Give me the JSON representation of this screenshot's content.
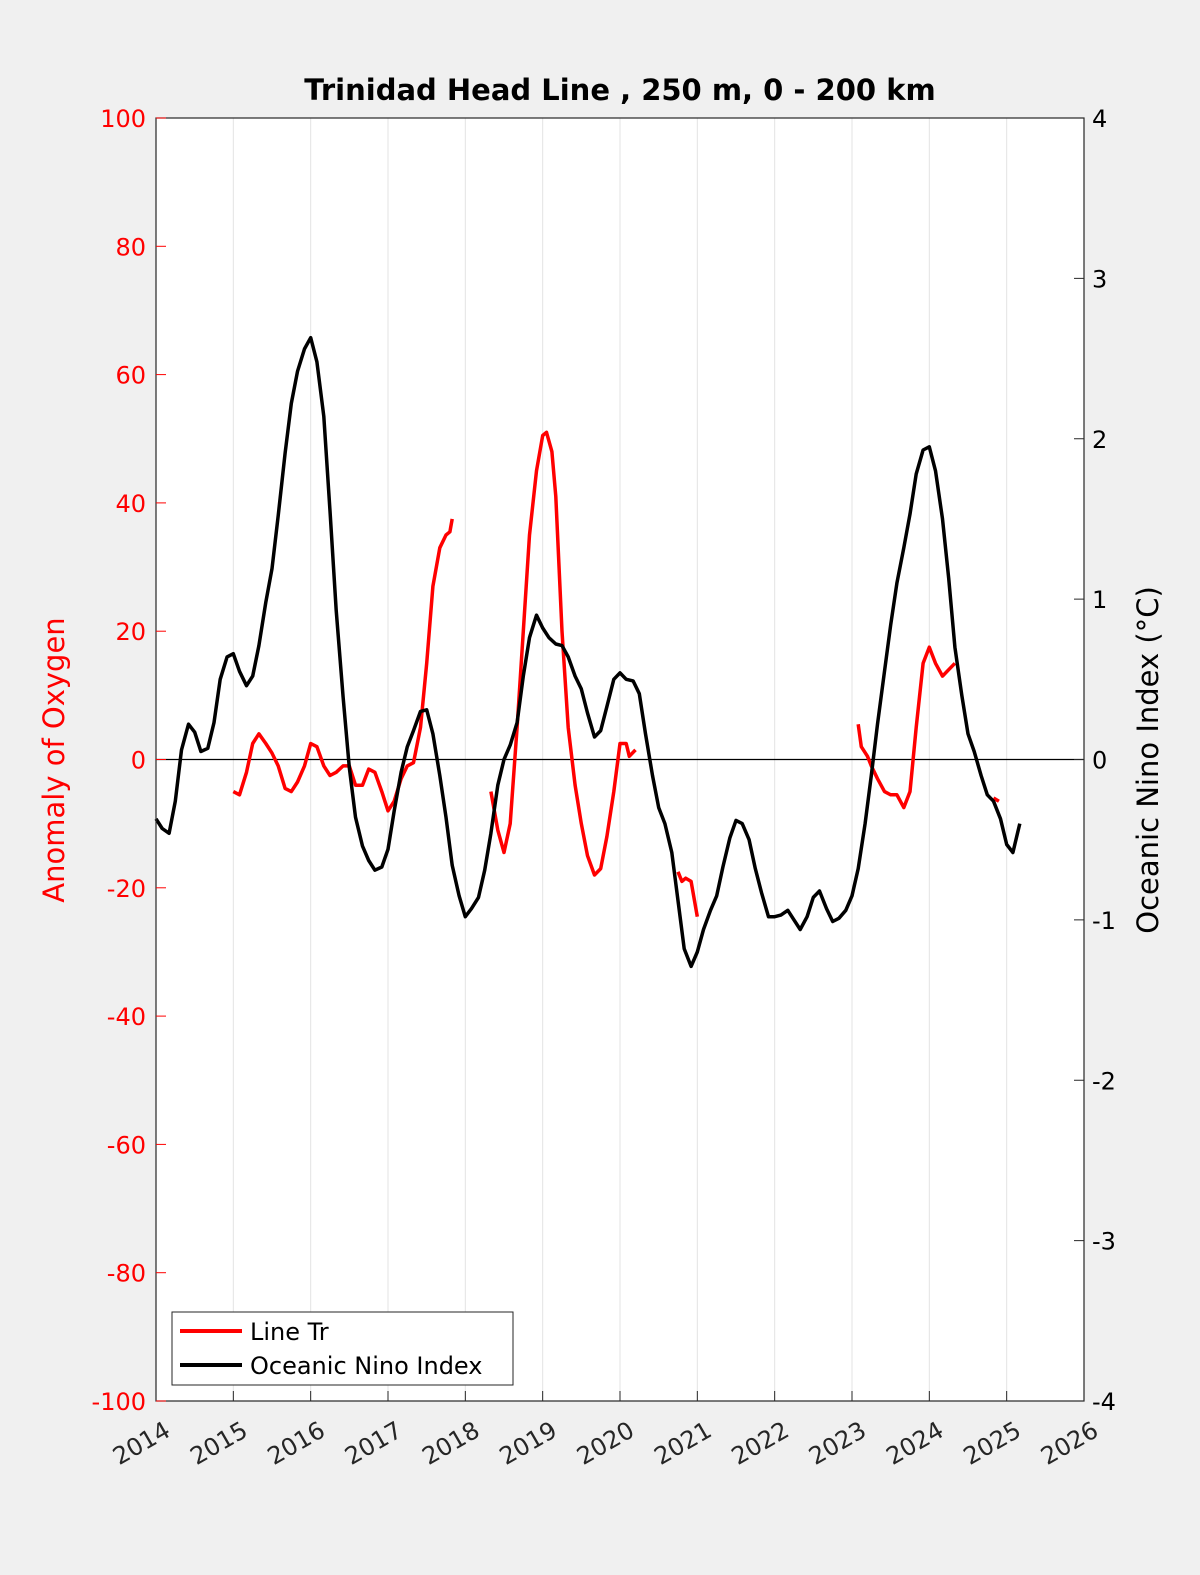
{
  "chart_data": {
    "type": "line",
    "title": "Trinidad Head Line , 250 m, 0 - 200 km",
    "ylabel_left": "Anomaly of Oxygen",
    "ylabel_right": "Oceanic Nino Index (°C)",
    "xlim": [
      2014,
      2026
    ],
    "ylim_left": [
      -100,
      100
    ],
    "ylim_right": [
      -4,
      4
    ],
    "x_ticks": [
      "2014",
      "2015",
      "2016",
      "2017",
      "2018",
      "2019",
      "2020",
      "2021",
      "2022",
      "2023",
      "2024",
      "2025",
      "2026"
    ],
    "y_left_ticks": [
      "100",
      "80",
      "60",
      "40",
      "20",
      "0",
      "-20",
      "-40",
      "-60",
      "-80",
      "-100"
    ],
    "y_right_ticks": [
      "4",
      "3",
      "2",
      "1",
      "0",
      "-1",
      "-2",
      "-3",
      "-4"
    ],
    "grid": "vertical",
    "zero_line": true,
    "legend_position": "bottom-left",
    "series": [
      {
        "name": "Line Tr",
        "axis": "left",
        "color": "#ff0000",
        "segments": [
          [
            [
              2015.0,
              -5
            ],
            [
              2015.08,
              -5.5
            ],
            [
              2015.17,
              -2
            ],
            [
              2015.25,
              2.5
            ],
            [
              2015.33,
              4
            ],
            [
              2015.42,
              2.5
            ],
            [
              2015.5,
              1
            ],
            [
              2015.58,
              -1
            ],
            [
              2015.67,
              -4.5
            ],
            [
              2015.75,
              -5
            ],
            [
              2015.83,
              -3.5
            ],
            [
              2015.92,
              -1
            ],
            [
              2016.0,
              2.5
            ],
            [
              2016.08,
              2
            ],
            [
              2016.17,
              -1
            ],
            [
              2016.25,
              -2.5
            ],
            [
              2016.33,
              -2
            ],
            [
              2016.42,
              -1
            ],
            [
              2016.5,
              -1
            ],
            [
              2016.58,
              -4
            ],
            [
              2016.67,
              -4
            ],
            [
              2016.75,
              -1.5
            ],
            [
              2016.83,
              -2
            ],
            [
              2016.92,
              -5
            ],
            [
              2017.0,
              -8
            ],
            [
              2017.08,
              -6.5
            ],
            [
              2017.17,
              -3
            ],
            [
              2017.25,
              -1
            ],
            [
              2017.33,
              -0.5
            ],
            [
              2017.42,
              5
            ],
            [
              2017.5,
              15
            ],
            [
              2017.58,
              27
            ],
            [
              2017.67,
              33
            ],
            [
              2017.75,
              35
            ],
            [
              2017.8,
              35.5
            ],
            [
              2017.83,
              37.5
            ]
          ],
          [
            [
              2018.33,
              -5
            ],
            [
              2018.42,
              -11
            ],
            [
              2018.5,
              -14.5
            ],
            [
              2018.58,
              -10
            ],
            [
              2018.67,
              5
            ],
            [
              2018.75,
              20
            ],
            [
              2018.83,
              35
            ],
            [
              2018.92,
              45
            ],
            [
              2019.0,
              50.5
            ],
            [
              2019.05,
              51
            ],
            [
              2019.12,
              48
            ],
            [
              2019.17,
              41
            ],
            [
              2019.25,
              20
            ],
            [
              2019.33,
              5
            ],
            [
              2019.42,
              -4
            ],
            [
              2019.5,
              -10
            ],
            [
              2019.58,
              -15
            ],
            [
              2019.67,
              -18
            ],
            [
              2019.75,
              -17
            ],
            [
              2019.83,
              -12
            ],
            [
              2019.92,
              -5
            ],
            [
              2020.0,
              2.5
            ],
            [
              2020.08,
              2.5
            ],
            [
              2020.12,
              0.5
            ],
            [
              2020.2,
              1.5
            ]
          ],
          [
            [
              2020.75,
              -17.5
            ],
            [
              2020.8,
              -19
            ],
            [
              2020.85,
              -18.5
            ],
            [
              2020.92,
              -19
            ],
            [
              2021.0,
              -24.5
            ]
          ],
          [
            [
              2023.08,
              5.5
            ],
            [
              2023.12,
              2
            ],
            [
              2023.2,
              0.5
            ],
            [
              2023.25,
              -1
            ],
            [
              2023.33,
              -3
            ],
            [
              2023.42,
              -5
            ],
            [
              2023.5,
              -5.5
            ],
            [
              2023.58,
              -5.5
            ],
            [
              2023.67,
              -7.5
            ],
            [
              2023.75,
              -5
            ],
            [
              2023.83,
              5
            ],
            [
              2023.92,
              15
            ],
            [
              2024.0,
              17.5
            ],
            [
              2024.08,
              15
            ],
            [
              2024.17,
              13
            ],
            [
              2024.25,
              14
            ],
            [
              2024.33,
              15
            ]
          ],
          [
            [
              2024.83,
              -6
            ],
            [
              2024.9,
              -6.5
            ]
          ]
        ]
      },
      {
        "name": "Oceanic Nino Index",
        "axis": "right",
        "color": "#000000",
        "segments": [
          [
            [
              2014.0,
              -0.37
            ],
            [
              2014.08,
              -0.43
            ],
            [
              2014.17,
              -0.46
            ],
            [
              2014.25,
              -0.26
            ],
            [
              2014.33,
              0.06
            ],
            [
              2014.42,
              0.22
            ],
            [
              2014.5,
              0.17
            ],
            [
              2014.58,
              0.05
            ],
            [
              2014.67,
              0.07
            ],
            [
              2014.75,
              0.23
            ],
            [
              2014.83,
              0.5
            ],
            [
              2014.92,
              0.64
            ],
            [
              2015.0,
              0.66
            ],
            [
              2015.08,
              0.55
            ],
            [
              2015.17,
              0.46
            ],
            [
              2015.25,
              0.52
            ],
            [
              2015.33,
              0.71
            ],
            [
              2015.42,
              0.98
            ],
            [
              2015.5,
              1.19
            ],
            [
              2015.58,
              1.52
            ],
            [
              2015.67,
              1.91
            ],
            [
              2015.75,
              2.22
            ],
            [
              2015.83,
              2.42
            ],
            [
              2015.92,
              2.56
            ],
            [
              2016.0,
              2.63
            ],
            [
              2016.08,
              2.48
            ],
            [
              2016.17,
              2.14
            ],
            [
              2016.25,
              1.55
            ],
            [
              2016.33,
              0.93
            ],
            [
              2016.42,
              0.39
            ],
            [
              2016.5,
              -0.05
            ],
            [
              2016.58,
              -0.36
            ],
            [
              2016.67,
              -0.54
            ],
            [
              2016.75,
              -0.63
            ],
            [
              2016.83,
              -0.69
            ],
            [
              2016.92,
              -0.67
            ],
            [
              2017.0,
              -0.56
            ],
            [
              2017.08,
              -0.32
            ],
            [
              2017.17,
              -0.08
            ],
            [
              2017.25,
              0.08
            ],
            [
              2017.33,
              0.18
            ],
            [
              2017.42,
              0.3
            ],
            [
              2017.5,
              0.31
            ],
            [
              2017.58,
              0.16
            ],
            [
              2017.67,
              -0.1
            ],
            [
              2017.75,
              -0.36
            ],
            [
              2017.83,
              -0.66
            ],
            [
              2017.92,
              -0.85
            ],
            [
              2018.0,
              -0.98
            ],
            [
              2018.08,
              -0.93
            ],
            [
              2018.17,
              -0.86
            ],
            [
              2018.25,
              -0.69
            ],
            [
              2018.33,
              -0.46
            ],
            [
              2018.42,
              -0.16
            ],
            [
              2018.5,
              0.0
            ],
            [
              2018.58,
              0.09
            ],
            [
              2018.67,
              0.23
            ],
            [
              2018.75,
              0.52
            ],
            [
              2018.83,
              0.76
            ],
            [
              2018.92,
              0.9
            ],
            [
              2019.0,
              0.82
            ],
            [
              2019.08,
              0.76
            ],
            [
              2019.17,
              0.72
            ],
            [
              2019.25,
              0.71
            ],
            [
              2019.33,
              0.64
            ],
            [
              2019.42,
              0.52
            ],
            [
              2019.5,
              0.44
            ],
            [
              2019.58,
              0.29
            ],
            [
              2019.67,
              0.14
            ],
            [
              2019.75,
              0.18
            ],
            [
              2019.83,
              0.33
            ],
            [
              2019.92,
              0.5
            ],
            [
              2020.0,
              0.54
            ],
            [
              2020.08,
              0.5
            ],
            [
              2020.17,
              0.49
            ],
            [
              2020.25,
              0.41
            ],
            [
              2020.33,
              0.16
            ],
            [
              2020.42,
              -0.1
            ],
            [
              2020.5,
              -0.3
            ],
            [
              2020.58,
              -0.4
            ],
            [
              2020.67,
              -0.58
            ],
            [
              2020.75,
              -0.88
            ],
            [
              2020.83,
              -1.18
            ],
            [
              2020.92,
              -1.29
            ],
            [
              2021.0,
              -1.2
            ],
            [
              2021.08,
              -1.06
            ],
            [
              2021.17,
              -0.94
            ],
            [
              2021.25,
              -0.85
            ],
            [
              2021.33,
              -0.67
            ],
            [
              2021.42,
              -0.49
            ],
            [
              2021.5,
              -0.38
            ],
            [
              2021.58,
              -0.4
            ],
            [
              2021.67,
              -0.5
            ],
            [
              2021.75,
              -0.68
            ],
            [
              2021.83,
              -0.83
            ],
            [
              2021.92,
              -0.98
            ],
            [
              2022.0,
              -0.98
            ],
            [
              2022.08,
              -0.97
            ],
            [
              2022.17,
              -0.94
            ],
            [
              2022.25,
              -1.0
            ],
            [
              2022.33,
              -1.06
            ],
            [
              2022.42,
              -0.98
            ],
            [
              2022.5,
              -0.86
            ],
            [
              2022.58,
              -0.82
            ],
            [
              2022.67,
              -0.93
            ],
            [
              2022.75,
              -1.01
            ],
            [
              2022.83,
              -0.99
            ],
            [
              2022.92,
              -0.94
            ],
            [
              2023.0,
              -0.85
            ],
            [
              2023.08,
              -0.68
            ],
            [
              2023.17,
              -0.4
            ],
            [
              2023.25,
              -0.1
            ],
            [
              2023.33,
              0.22
            ],
            [
              2023.42,
              0.55
            ],
            [
              2023.5,
              0.84
            ],
            [
              2023.58,
              1.1
            ],
            [
              2023.67,
              1.32
            ],
            [
              2023.75,
              1.53
            ],
            [
              2023.83,
              1.78
            ],
            [
              2023.92,
              1.93
            ],
            [
              2024.0,
              1.95
            ],
            [
              2024.08,
              1.8
            ],
            [
              2024.17,
              1.5
            ],
            [
              2024.25,
              1.13
            ],
            [
              2024.33,
              0.7
            ],
            [
              2024.42,
              0.4
            ],
            [
              2024.5,
              0.16
            ],
            [
              2024.58,
              0.05
            ],
            [
              2024.67,
              -0.1
            ],
            [
              2024.75,
              -0.22
            ],
            [
              2024.83,
              -0.26
            ],
            [
              2024.92,
              -0.37
            ],
            [
              2025.0,
              -0.53
            ],
            [
              2025.08,
              -0.58
            ],
            [
              2025.17,
              -0.4
            ]
          ]
        ]
      }
    ]
  }
}
